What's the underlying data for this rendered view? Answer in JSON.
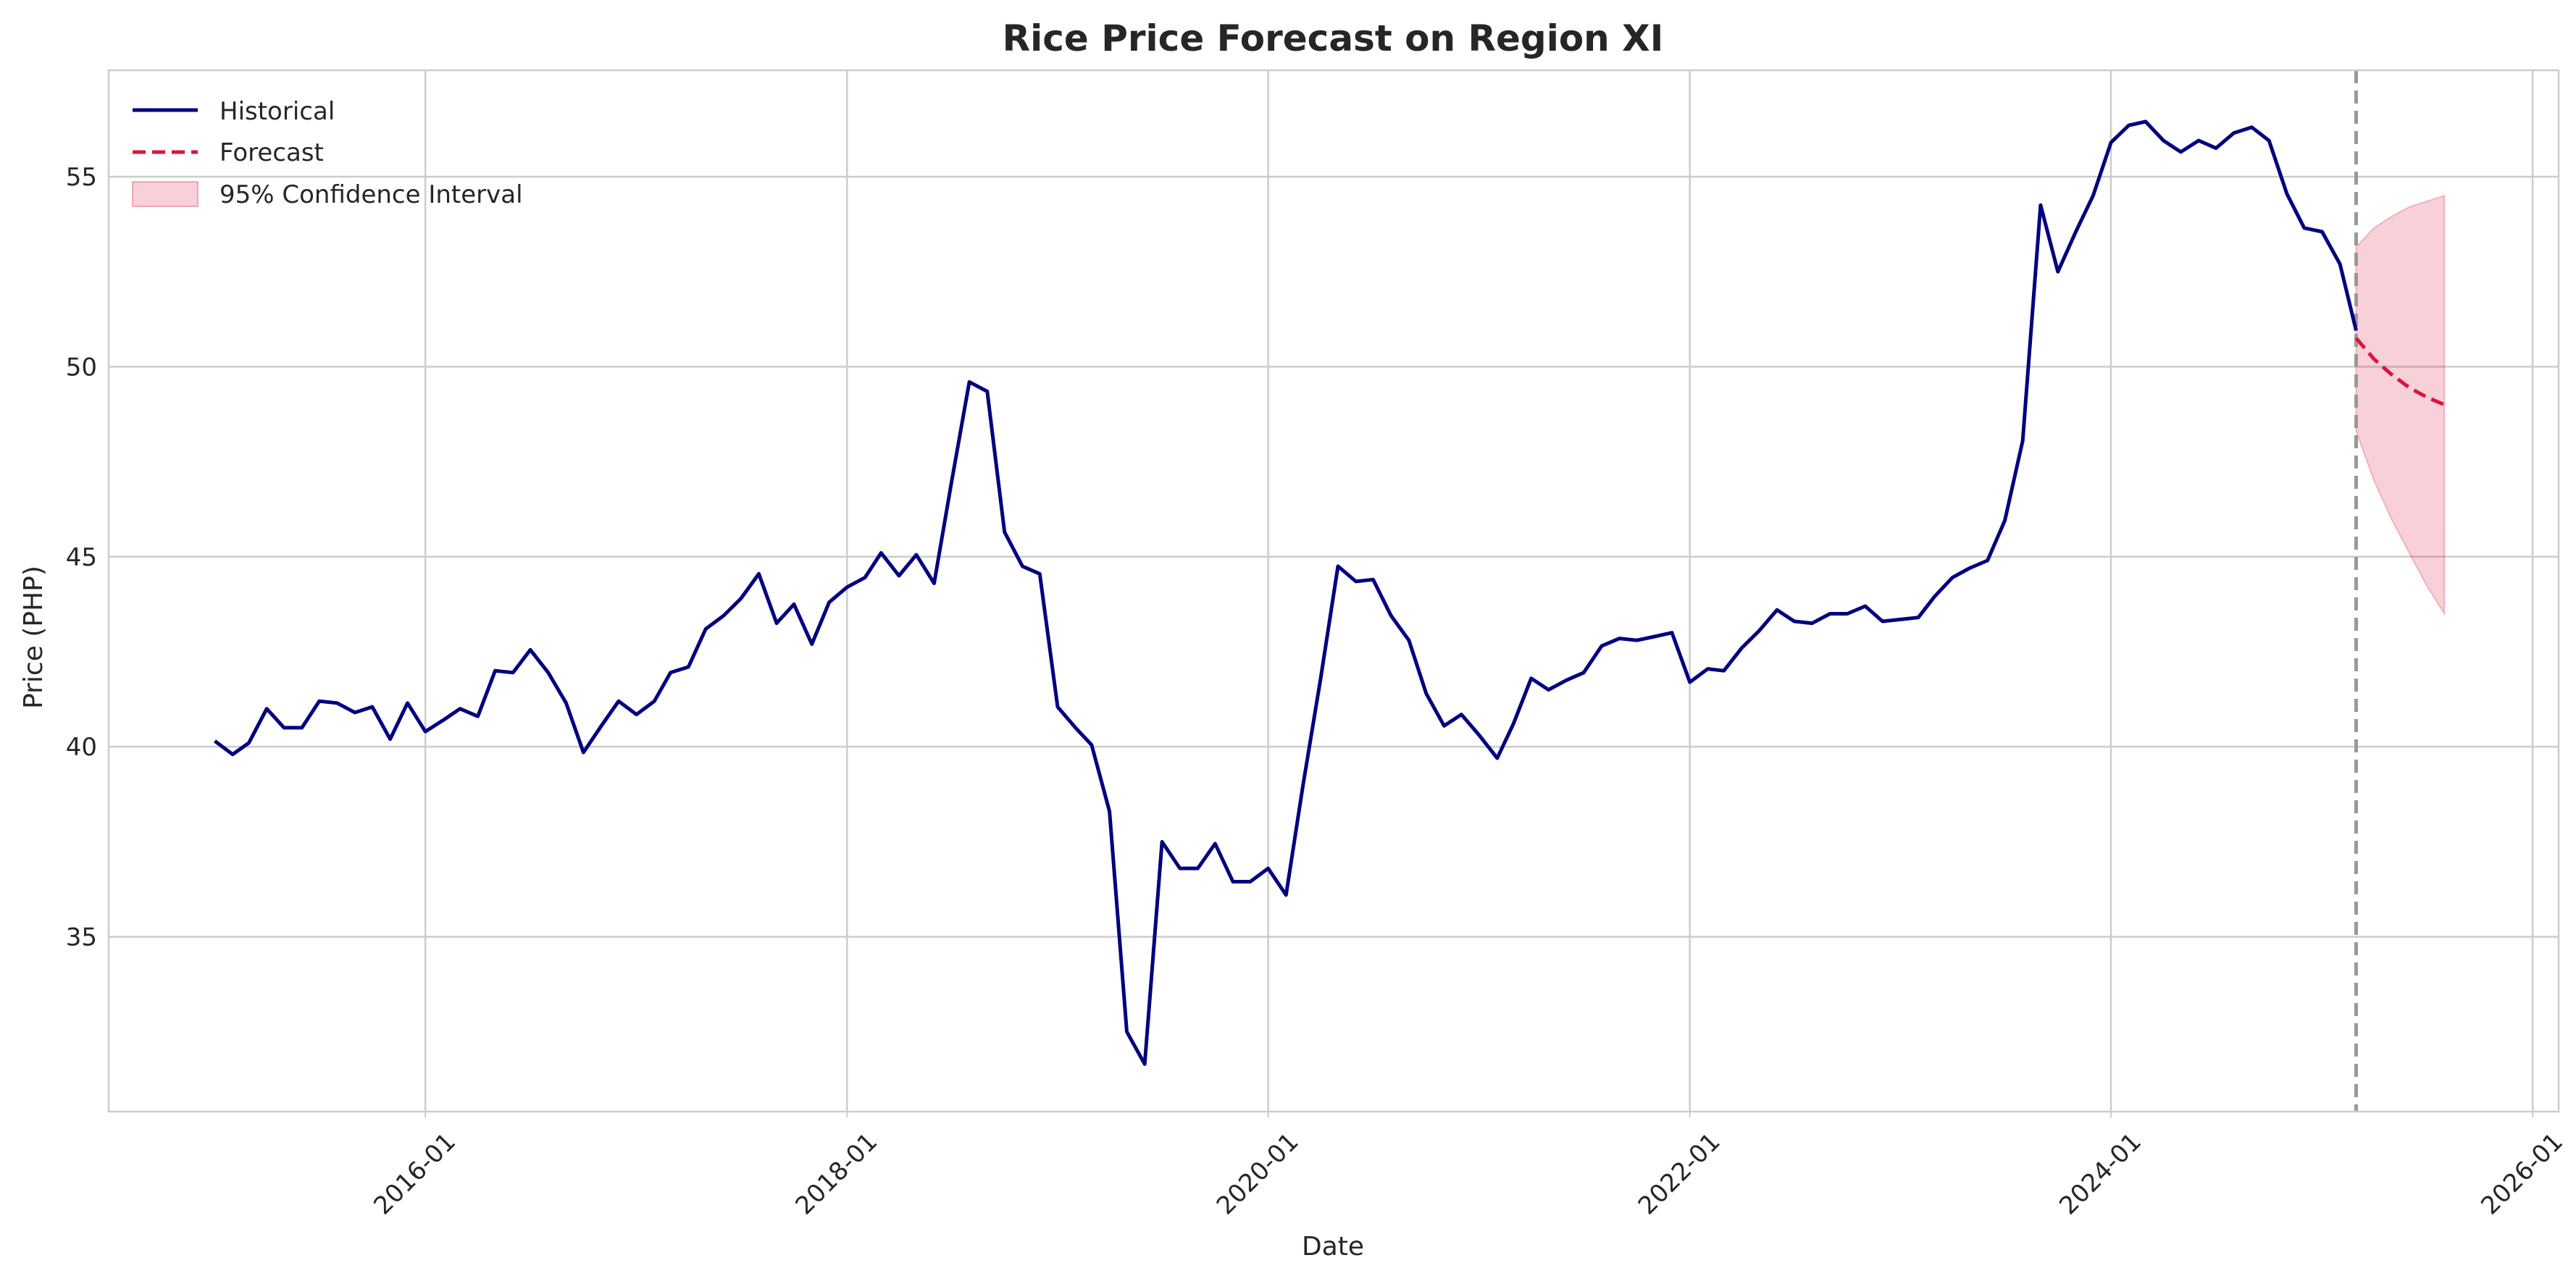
{
  "chart_data": {
    "type": "line",
    "title": "Rice Price Forecast on Region XI",
    "xlabel": "Date",
    "ylabel": "Price (PHP)",
    "x_axis": "date",
    "xlim": [
      "2014-07-01",
      "2026-02-15"
    ],
    "ylim": [
      30.4,
      57.8
    ],
    "xticks": [
      "2016-01",
      "2018-01",
      "2020-01",
      "2022-01",
      "2024-01",
      "2026-01"
    ],
    "yticks": [
      35,
      40,
      45,
      50,
      55
    ],
    "xtick_rotation": 45,
    "grid": true,
    "legend_position": "top-left",
    "forecast_start": "2025-03",
    "series": [
      {
        "name": "Historical",
        "style": "solid",
        "color": "#000080",
        "points": [
          [
            "2015-01",
            40.15
          ],
          [
            "2015-02",
            39.8
          ],
          [
            "2015-03",
            40.1
          ],
          [
            "2015-04",
            41.0
          ],
          [
            "2015-05",
            40.5
          ],
          [
            "2015-06",
            40.5
          ],
          [
            "2015-07",
            41.2
          ],
          [
            "2015-08",
            41.15
          ],
          [
            "2015-09",
            40.9
          ],
          [
            "2015-10",
            41.05
          ],
          [
            "2015-11",
            40.2
          ],
          [
            "2015-12",
            41.15
          ],
          [
            "2016-01",
            40.4
          ],
          [
            "2016-02",
            40.7
          ],
          [
            "2016-03",
            41.0
          ],
          [
            "2016-04",
            40.8
          ],
          [
            "2016-05",
            42.0
          ],
          [
            "2016-06",
            41.95
          ],
          [
            "2016-07",
            42.55
          ],
          [
            "2016-08",
            41.95
          ],
          [
            "2016-09",
            41.15
          ],
          [
            "2016-10",
            39.85
          ],
          [
            "2016-11",
            40.55
          ],
          [
            "2016-12",
            41.2
          ],
          [
            "2017-01",
            40.85
          ],
          [
            "2017-02",
            41.2
          ],
          [
            "2017-03",
            41.95
          ],
          [
            "2017-04",
            42.1
          ],
          [
            "2017-05",
            43.1
          ],
          [
            "2017-06",
            43.45
          ],
          [
            "2017-07",
            43.9
          ],
          [
            "2017-08",
            44.55
          ],
          [
            "2017-09",
            43.25
          ],
          [
            "2017-10",
            43.75
          ],
          [
            "2017-11",
            42.7
          ],
          [
            "2017-12",
            43.8
          ],
          [
            "2018-01",
            44.2
          ],
          [
            "2018-02",
            44.45
          ],
          [
            "2018-03",
            45.1
          ],
          [
            "2018-04",
            44.5
          ],
          [
            "2018-05",
            45.05
          ],
          [
            "2018-06",
            44.3
          ],
          [
            "2018-07",
            46.95
          ],
          [
            "2018-08",
            49.6
          ],
          [
            "2018-09",
            49.35
          ],
          [
            "2018-10",
            45.65
          ],
          [
            "2018-11",
            44.75
          ],
          [
            "2018-12",
            44.55
          ],
          [
            "2019-01",
            41.05
          ],
          [
            "2019-02",
            40.5
          ],
          [
            "2019-03",
            40.05
          ],
          [
            "2019-04",
            38.3
          ],
          [
            "2019-05",
            32.5
          ],
          [
            "2019-06",
            31.65
          ],
          [
            "2019-07",
            37.5
          ],
          [
            "2019-08",
            36.8
          ],
          [
            "2019-09",
            36.8
          ],
          [
            "2019-10",
            37.45
          ],
          [
            "2019-11",
            36.45
          ],
          [
            "2019-12",
            36.45
          ],
          [
            "2020-01",
            36.8
          ],
          [
            "2020-02",
            36.1
          ],
          [
            "2020-03",
            38.95
          ],
          [
            "2020-04",
            41.8
          ],
          [
            "2020-05",
            44.75
          ],
          [
            "2020-06",
            44.35
          ],
          [
            "2020-07",
            44.4
          ],
          [
            "2020-08",
            43.45
          ],
          [
            "2020-09",
            42.8
          ],
          [
            "2020-10",
            41.4
          ],
          [
            "2020-11",
            40.55
          ],
          [
            "2020-12",
            40.85
          ],
          [
            "2021-01",
            40.3
          ],
          [
            "2021-02",
            39.7
          ],
          [
            "2021-03",
            40.6
          ],
          [
            "2021-04",
            41.8
          ],
          [
            "2021-05",
            41.5
          ],
          [
            "2021-06",
            41.75
          ],
          [
            "2021-07",
            41.95
          ],
          [
            "2021-08",
            42.65
          ],
          [
            "2021-09",
            42.85
          ],
          [
            "2021-10",
            42.8
          ],
          [
            "2021-11",
            42.9
          ],
          [
            "2021-12",
            43.0
          ],
          [
            "2022-01",
            41.7
          ],
          [
            "2022-02",
            42.05
          ],
          [
            "2022-03",
            42.0
          ],
          [
            "2022-04",
            42.6
          ],
          [
            "2022-05",
            43.05
          ],
          [
            "2022-06",
            43.6
          ],
          [
            "2022-07",
            43.3
          ],
          [
            "2022-08",
            43.25
          ],
          [
            "2022-09",
            43.5
          ],
          [
            "2022-10",
            43.5
          ],
          [
            "2022-11",
            43.7
          ],
          [
            "2022-12",
            43.3
          ],
          [
            "2023-01",
            43.35
          ],
          [
            "2023-02",
            43.4
          ],
          [
            "2023-03",
            43.95
          ],
          [
            "2023-04",
            44.45
          ],
          [
            "2023-05",
            44.7
          ],
          [
            "2023-06",
            44.9
          ],
          [
            "2023-07",
            45.95
          ],
          [
            "2023-08",
            48.05
          ],
          [
            "2023-09",
            54.25
          ],
          [
            "2023-10",
            52.5
          ],
          [
            "2023-11",
            53.55
          ],
          [
            "2023-12",
            54.5
          ],
          [
            "2024-01",
            55.9
          ],
          [
            "2024-02",
            56.35
          ],
          [
            "2024-03",
            56.45
          ],
          [
            "2024-04",
            55.95
          ],
          [
            "2024-05",
            55.65
          ],
          [
            "2024-06",
            55.95
          ],
          [
            "2024-07",
            55.75
          ],
          [
            "2024-08",
            56.15
          ],
          [
            "2024-09",
            56.3
          ],
          [
            "2024-10",
            55.95
          ],
          [
            "2024-11",
            54.55
          ],
          [
            "2024-12",
            53.65
          ],
          [
            "2025-01",
            53.55
          ],
          [
            "2025-02",
            52.7
          ],
          [
            "2025-03",
            50.95
          ]
        ]
      },
      {
        "name": "Forecast",
        "style": "dashed",
        "color": "#DC143C",
        "points": [
          [
            "2025-03",
            50.75
          ],
          [
            "2025-04",
            50.2
          ],
          [
            "2025-05",
            49.8
          ],
          [
            "2025-06",
            49.45
          ],
          [
            "2025-07",
            49.2
          ],
          [
            "2025-08",
            49.0
          ]
        ]
      }
    ],
    "confidence_interval": {
      "name": "95% Confidence Interval",
      "color": "#DC143C",
      "lower": [
        [
          "2025-03",
          48.3
        ],
        [
          "2025-04",
          47.0
        ],
        [
          "2025-05",
          46.0
        ],
        [
          "2025-06",
          45.1
        ],
        [
          "2025-07",
          44.25
        ],
        [
          "2025-08",
          43.5
        ]
      ],
      "upper": [
        [
          "2025-03",
          53.15
        ],
        [
          "2025-04",
          53.65
        ],
        [
          "2025-05",
          53.95
        ],
        [
          "2025-06",
          54.2
        ],
        [
          "2025-07",
          54.35
        ],
        [
          "2025-08",
          54.5
        ]
      ]
    }
  }
}
